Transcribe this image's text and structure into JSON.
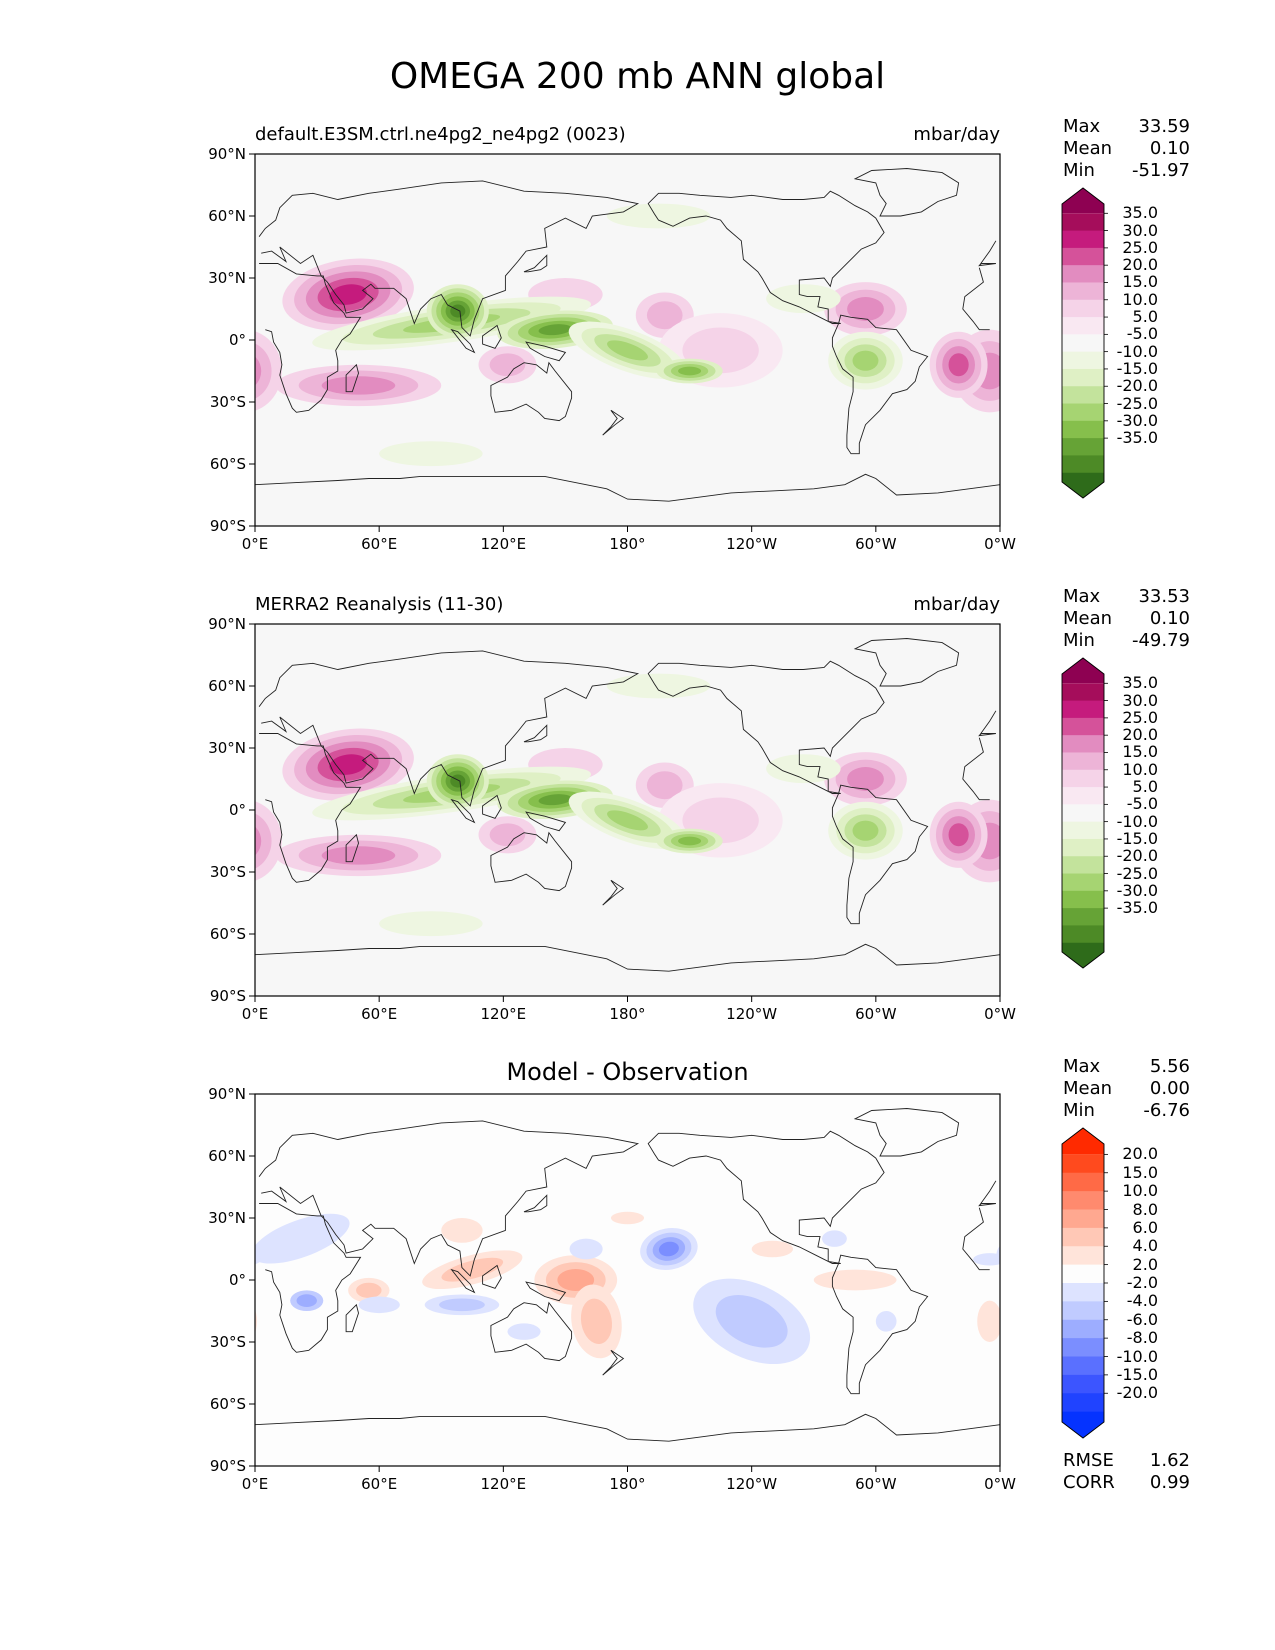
{
  "figure": {
    "title": "OMEGA 200 mb ANN global"
  },
  "panels": [
    {
      "id": "test",
      "title_left": "default.E3SM.ctrl.ne4pg2_ne4pg2 (0023)",
      "title_right": "mbar/day",
      "title_center": "",
      "stats": [
        {
          "label": "Max",
          "value": "33.59"
        },
        {
          "label": "Mean",
          "value": "0.10"
        },
        {
          "label": "Min",
          "value": "-51.97"
        }
      ],
      "colorbar": {
        "ticks": [
          "35.0",
          "30.0",
          "25.0",
          "20.0",
          "15.0",
          "10.0",
          "5.0",
          "-5.0",
          "-10.0",
          "-15.0",
          "-20.0",
          "-25.0",
          "-30.0",
          "-35.0"
        ],
        "colors": [
          "#8e0152",
          "#a50d5b",
          "#c51b7d",
          "#d5529a",
          "#e28cc0",
          "#edb4d7",
          "#f5d3e8",
          "#f9e8f2",
          "#f7f7f7",
          "#eef6e1",
          "#dff0c5",
          "#c3e39c",
          "#a6d472",
          "#86bf4c",
          "#66a336",
          "#4d8a26",
          "#2e6b1a"
        ]
      },
      "extra_stats": []
    },
    {
      "id": "reference",
      "title_left": "MERRA2 Reanalysis (11-30)",
      "title_right": "mbar/day",
      "title_center": "",
      "stats": [
        {
          "label": "Max",
          "value": "33.53"
        },
        {
          "label": "Mean",
          "value": "0.10"
        },
        {
          "label": "Min",
          "value": "-49.79"
        }
      ],
      "colorbar": {
        "ticks": [
          "35.0",
          "30.0",
          "25.0",
          "20.0",
          "15.0",
          "10.0",
          "5.0",
          "-5.0",
          "-10.0",
          "-15.0",
          "-20.0",
          "-25.0",
          "-30.0",
          "-35.0"
        ],
        "colors": [
          "#8e0152",
          "#a50d5b",
          "#c51b7d",
          "#d5529a",
          "#e28cc0",
          "#edb4d7",
          "#f5d3e8",
          "#f9e8f2",
          "#f7f7f7",
          "#eef6e1",
          "#dff0c5",
          "#c3e39c",
          "#a6d472",
          "#86bf4c",
          "#66a336",
          "#4d8a26",
          "#2e6b1a"
        ]
      },
      "extra_stats": []
    },
    {
      "id": "difference",
      "title_left": "",
      "title_right": "",
      "title_center": "Model - Observation",
      "stats": [
        {
          "label": "Max",
          "value": "5.56"
        },
        {
          "label": "Mean",
          "value": "0.00"
        },
        {
          "label": "Min",
          "value": "-6.76"
        }
      ],
      "colorbar": {
        "ticks": [
          "20.0",
          "15.0",
          "10.0",
          "8.0",
          "6.0",
          "4.0",
          "2.0",
          "-2.0",
          "-4.0",
          "-6.0",
          "-8.0",
          "-10.0",
          "-15.0",
          "-20.0"
        ],
        "colors": [
          "#ff2a00",
          "#ff4a1e",
          "#ff6a46",
          "#ff8a6e",
          "#ffa890",
          "#ffc8b6",
          "#ffe4da",
          "#fdfdfd",
          "#dde3ff",
          "#c0cbff",
          "#9dadff",
          "#7b8eff",
          "#5a70ff",
          "#3c55ff",
          "#2043ff",
          "#0533ff"
        ]
      },
      "extra_stats": [
        {
          "label": "RMSE",
          "value": "1.62"
        },
        {
          "label": "CORR",
          "value": "0.99"
        }
      ]
    }
  ],
  "axes": {
    "x_ticks": [
      "0°E",
      "60°E",
      "120°E",
      "180°",
      "120°W",
      "60°W",
      "0°W"
    ],
    "y_ticks": [
      "90°N",
      "60°N",
      "30°N",
      "0°",
      "30°S",
      "60°S",
      "90°S"
    ]
  }
}
